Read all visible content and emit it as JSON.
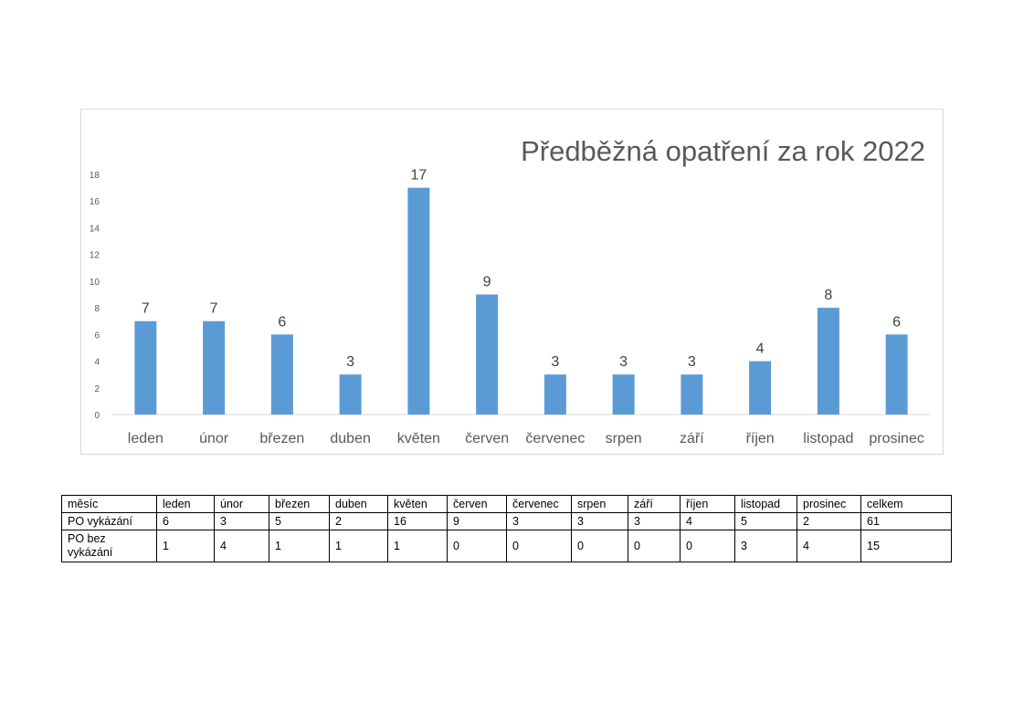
{
  "chart_data": {
    "type": "bar",
    "title": "Předběžná opatření za rok 2022",
    "categories": [
      "leden",
      "únor",
      "březen",
      "duben",
      "květen",
      "červen",
      "červenec",
      "srpen",
      "září",
      "říjen",
      "listopad",
      "prosinec"
    ],
    "values": [
      7,
      7,
      6,
      3,
      17,
      9,
      3,
      3,
      3,
      4,
      8,
      6
    ],
    "yticks": [
      "0",
      "2",
      "4",
      "6",
      "8",
      "10",
      "12",
      "14",
      "16",
      "18"
    ],
    "ylim": [
      0,
      18
    ],
    "grid": false,
    "data_labels": true,
    "bar_color": "#5b9bd5"
  },
  "table": {
    "header": [
      "měsíc",
      "leden",
      "únor",
      "březen",
      "duben",
      "květen",
      "červen",
      "červenec",
      "srpen",
      "září",
      "říjen",
      "listopad",
      "prosinec",
      "celkem"
    ],
    "rows": [
      [
        "PO vykázání",
        "6",
        "3",
        "5",
        "2",
        "16",
        "9",
        "3",
        "3",
        "3",
        "4",
        "5",
        "2",
        "61"
      ],
      [
        "PO bez vykázání",
        "1",
        "4",
        "1",
        "1",
        "1",
        "0",
        "0",
        "0",
        "0",
        "0",
        "3",
        "4",
        "15"
      ]
    ]
  }
}
